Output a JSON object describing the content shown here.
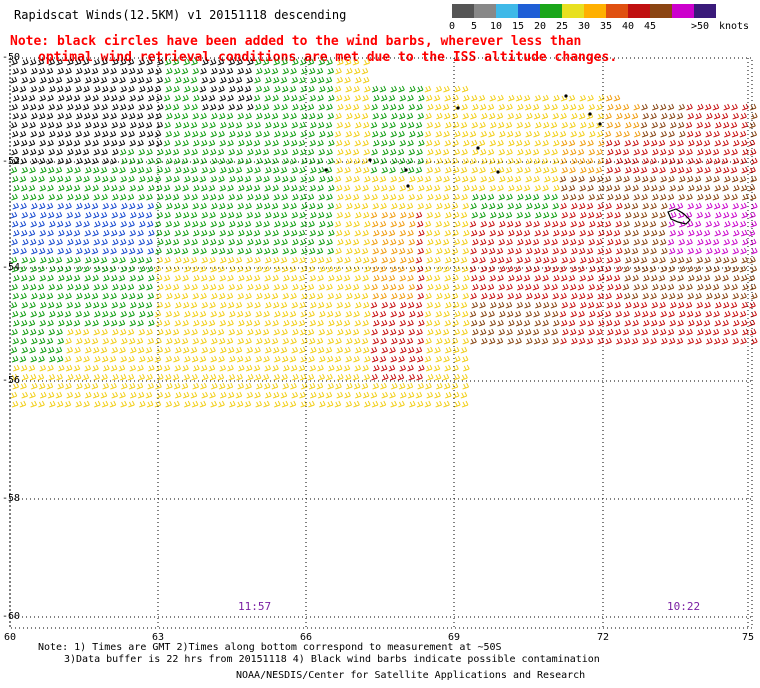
{
  "title": "Rapidscat Winds(12.5KM) v1 20151118 descending",
  "note_lines": [
    "Note: black circles have been added to the wind barbs, wherever less than",
    "optimal wind retrieval conditions are met due to the ISS altitude changes."
  ],
  "legend": {
    "labels": [
      "0",
      "5",
      "10",
      "15",
      "20",
      "25",
      "30",
      "35",
      "40",
      "45",
      ">50",
      "knots"
    ],
    "colors": [
      "#555555",
      "#888888",
      "#3fb9e8",
      "#1f5fd6",
      "#1aa61a",
      "#e8e020",
      "#ffb000",
      "#e05010",
      "#c01010",
      "#8b4513",
      "#cc00cc",
      "#3a1a7a"
    ]
  },
  "axes": {
    "lon_labels": [
      "60",
      "63",
      "66",
      "69",
      "72",
      "75"
    ],
    "lat_labels": [
      "-50",
      "-52",
      "-54",
      "-56",
      "-58",
      "-60"
    ]
  },
  "time_labels": {
    "left": "11:57",
    "right": "10:22"
  },
  "footer": {
    "note_line1": "Note: 1) Times are GMT 2)Times along bottom correspond to measurement at ~50S",
    "note_line2": "3)Data buffer is 22 hrs from 20151118 4) Black wind barbs indicate possible contamination",
    "credit": "NOAA/NESDIS/Center for Satellite Applications and Research"
  },
  "wind_regions": [
    {
      "name": "northwest-black",
      "color_key": "black",
      "knots": "contaminated"
    },
    {
      "name": "north-green",
      "color_key": "green",
      "knots": "15-20"
    },
    {
      "name": "west-blue",
      "color_key": "blue",
      "knots": "10-15"
    },
    {
      "name": "central-yellow",
      "color_key": "yellow",
      "knots": "20-25"
    },
    {
      "name": "east-red",
      "color_key": "red",
      "knots": "35-40"
    },
    {
      "name": "east-purple",
      "color_key": "purple",
      "knots": "45-50"
    }
  ]
}
